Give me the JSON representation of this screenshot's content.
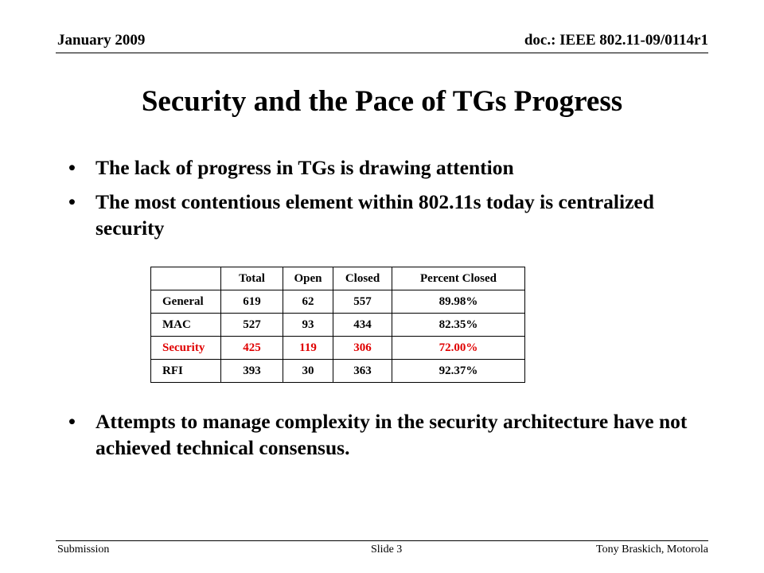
{
  "header": {
    "date": "January 2009",
    "doc_id": "doc.: IEEE 802.11-09/0114r1"
  },
  "slide": {
    "title": "Security and the Pace of TGs Progress",
    "bullets": [
      "The lack of progress in TGs is drawing attention",
      "The most contentious element within 802.11s today is centralized security"
    ],
    "bullets_after": [
      "Attempts to manage complexity in the security architecture have not achieved technical consensus."
    ],
    "bullet_glyph": "•"
  },
  "table": {
    "columns": [
      "",
      "Total",
      "Open",
      "Closed",
      "Percent Closed"
    ],
    "rows": [
      {
        "label": "General",
        "total": "619",
        "open": "62",
        "closed": "557",
        "pct": "89.98%"
      },
      {
        "label": "MAC",
        "total": "527",
        "open": "93",
        "closed": "434",
        "pct": "82.35%"
      },
      {
        "label": "Security",
        "total": "425",
        "open": "119",
        "closed": "306",
        "pct": "72.00%"
      },
      {
        "label": "RFI",
        "total": "393",
        "open": "30",
        "closed": "363",
        "pct": "92.37%"
      }
    ],
    "highlight_color": "#e00000"
  },
  "footer": {
    "left": "Submission",
    "center": "Slide 3",
    "right": "Tony Braskich, Motorola"
  }
}
